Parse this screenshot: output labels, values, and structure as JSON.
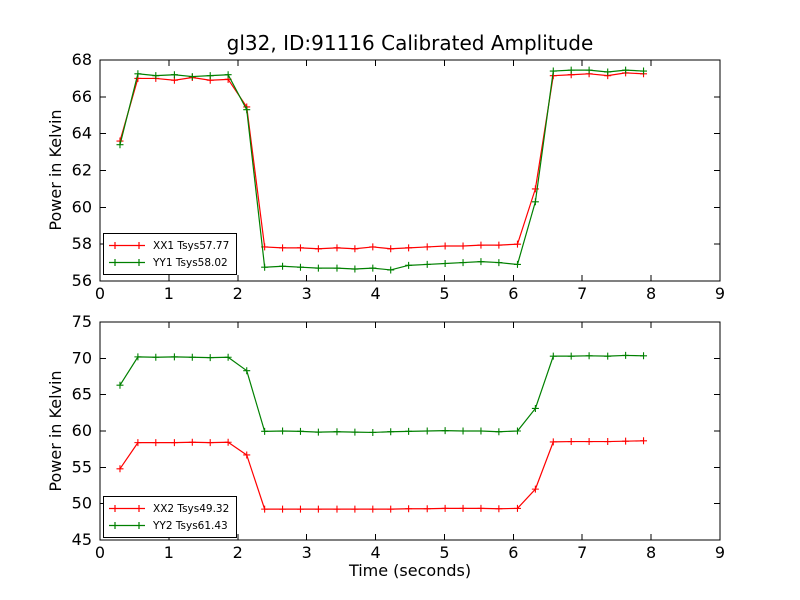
{
  "figure": {
    "title": "gl32, ID:91116 Calibrated Amplitude",
    "background_color": "#ffffff",
    "axis_color": "#000000"
  },
  "chart_data": [
    {
      "type": "line",
      "title": "gl32, ID:91116 Calibrated Amplitude",
      "xlabel": "",
      "ylabel": "Power in Kelvin",
      "xlim": [
        0,
        9
      ],
      "ylim": [
        56,
        68
      ],
      "xticks": [
        0,
        1,
        2,
        3,
        4,
        5,
        6,
        7,
        8,
        9
      ],
      "yticks": [
        56,
        58,
        60,
        62,
        64,
        66,
        68
      ],
      "grid": false,
      "legend_position": "lower left",
      "marker": "+",
      "x": [
        0.29,
        0.55,
        0.81,
        1.08,
        1.34,
        1.6,
        1.86,
        2.13,
        2.39,
        2.65,
        2.91,
        3.17,
        3.44,
        3.7,
        3.96,
        4.22,
        4.48,
        4.75,
        5.01,
        5.27,
        5.53,
        5.79,
        6.06,
        6.32,
        6.58,
        6.84,
        7.1,
        7.37,
        7.63,
        7.89
      ],
      "series": [
        {
          "name": "XX1 Tsys57.77",
          "tsys": 57.77,
          "color": "#ff0000",
          "values": [
            63.6,
            67.0,
            67.0,
            66.9,
            67.05,
            66.9,
            66.95,
            65.45,
            57.85,
            57.8,
            57.8,
            57.75,
            57.8,
            57.75,
            57.85,
            57.75,
            57.8,
            57.85,
            57.9,
            57.9,
            57.95,
            57.95,
            58.0,
            61.0,
            67.15,
            67.2,
            67.25,
            67.15,
            67.3,
            67.25
          ]
        },
        {
          "name": "YY1 Tsys58.02",
          "tsys": 58.02,
          "color": "#008000",
          "values": [
            63.4,
            67.25,
            67.15,
            67.2,
            67.1,
            67.15,
            67.2,
            65.3,
            56.75,
            56.8,
            56.75,
            56.7,
            56.7,
            56.65,
            56.7,
            56.6,
            56.85,
            56.9,
            56.95,
            57.0,
            57.05,
            57.0,
            56.9,
            60.3,
            67.4,
            67.45,
            67.45,
            67.35,
            67.45,
            67.4
          ]
        }
      ]
    },
    {
      "type": "line",
      "title": "",
      "xlabel": "Time (seconds)",
      "ylabel": "Power in Kelvin",
      "xlim": [
        0,
        9
      ],
      "ylim": [
        45,
        75
      ],
      "xticks": [
        0,
        1,
        2,
        3,
        4,
        5,
        6,
        7,
        8,
        9
      ],
      "yticks": [
        45,
        50,
        55,
        60,
        65,
        70,
        75
      ],
      "grid": false,
      "legend_position": "lower left",
      "marker": "+",
      "x": [
        0.29,
        0.55,
        0.81,
        1.08,
        1.34,
        1.6,
        1.86,
        2.13,
        2.39,
        2.65,
        2.91,
        3.17,
        3.44,
        3.7,
        3.96,
        4.22,
        4.48,
        4.75,
        5.01,
        5.27,
        5.53,
        5.79,
        6.06,
        6.32,
        6.58,
        6.84,
        7.1,
        7.37,
        7.63,
        7.89
      ],
      "series": [
        {
          "name": "XX2 Tsys49.32",
          "tsys": 49.32,
          "color": "#ff0000",
          "values": [
            54.8,
            58.4,
            58.4,
            58.4,
            58.45,
            58.4,
            58.45,
            56.7,
            49.25,
            49.25,
            49.25,
            49.25,
            49.25,
            49.25,
            49.25,
            49.25,
            49.3,
            49.3,
            49.35,
            49.35,
            49.35,
            49.3,
            49.35,
            52.0,
            58.5,
            58.55,
            58.55,
            58.55,
            58.6,
            58.65
          ]
        },
        {
          "name": "YY2 Tsys61.43",
          "tsys": 61.43,
          "color": "#008000",
          "values": [
            66.3,
            70.2,
            70.15,
            70.2,
            70.15,
            70.1,
            70.15,
            68.3,
            59.95,
            60.0,
            59.95,
            59.85,
            59.9,
            59.85,
            59.8,
            59.9,
            59.95,
            60.0,
            60.05,
            60.0,
            60.0,
            59.9,
            60.0,
            63.1,
            70.3,
            70.3,
            70.35,
            70.3,
            70.4,
            70.35
          ]
        }
      ]
    }
  ]
}
